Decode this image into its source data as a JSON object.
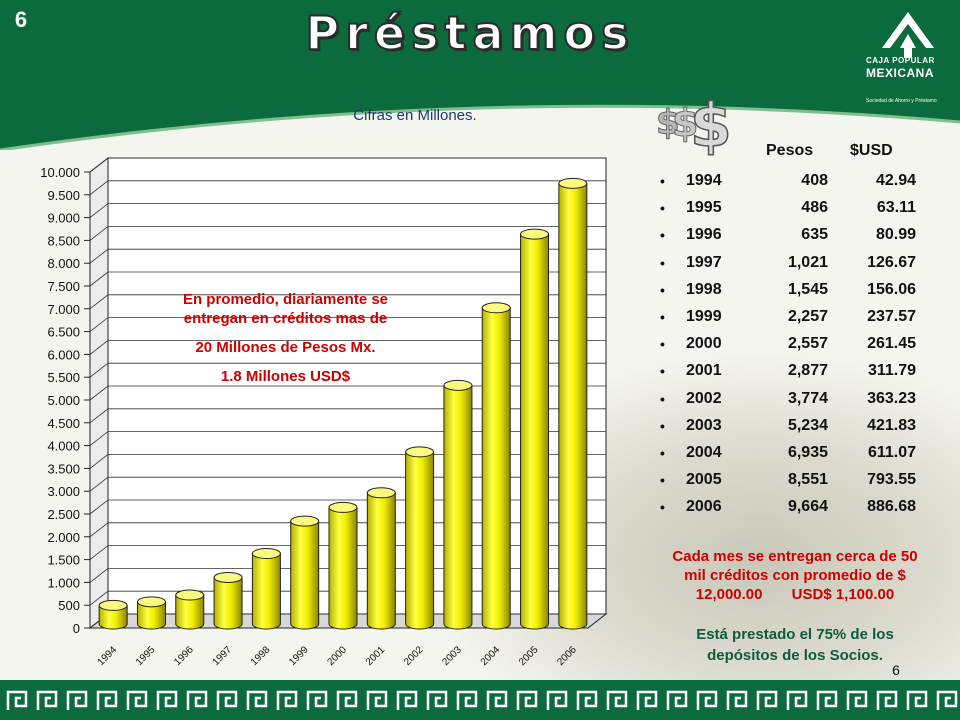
{
  "slide": {
    "number": "6",
    "footer_number": "6"
  },
  "title": "Préstamos",
  "subtitle": "Cifras en Millones.",
  "logo": {
    "line1": "CAJA POPULAR",
    "line2": "MEXICANA",
    "line3": "Sociedad de Ahorro y Préstamo"
  },
  "colors": {
    "header_green": "#0b6b3d",
    "bar_yellow": "#f2ee00",
    "callout_red": "#cc0000",
    "note_green": "#0f5a3c"
  },
  "callout": {
    "line1": "En promedio, diariamente se",
    "line2": "entregan en créditos mas de",
    "line3": "20 Millones de Pesos Mx.",
    "line4": "1.8 Millones USD$"
  },
  "table": {
    "headers": {
      "pesos": "Pesos",
      "usd": "$USD"
    },
    "bullet": "•",
    "rows": [
      {
        "year": "1994",
        "pesos": "408",
        "usd": "42.94"
      },
      {
        "year": "1995",
        "pesos": "486",
        "usd": "63.11"
      },
      {
        "year": "1996",
        "pesos": "635",
        "usd": "80.99"
      },
      {
        "year": "1997",
        "pesos": "1,021",
        "usd": "126.67"
      },
      {
        "year": "1998",
        "pesos": "1,545",
        "usd": "156.06"
      },
      {
        "year": "1999",
        "pesos": "2,257",
        "usd": "237.57"
      },
      {
        "year": "2000",
        "pesos": "2,557",
        "usd": "261.45"
      },
      {
        "year": "2001",
        "pesos": "2,877",
        "usd": "311.79"
      },
      {
        "year": "2002",
        "pesos": "3,774",
        "usd": "363.23"
      },
      {
        "year": "2003",
        "pesos": "5,234",
        "usd": "421.83"
      },
      {
        "year": "2004",
        "pesos": "6,935",
        "usd": "611.07"
      },
      {
        "year": "2005",
        "pesos": "8,551",
        "usd": "793.55"
      },
      {
        "year": "2006",
        "pesos": "9,664",
        "usd": "886.68"
      }
    ]
  },
  "notes": {
    "note1_line1": "Cada mes se entregan cerca de 50",
    "note1_line2": "mil créditos con promedio de  $",
    "note1_line3": "12,000.00       USD$ 1,100.00",
    "note2_line1": "Está prestado el 75% de los",
    "note2_line2": "depósitos de los Socios."
  },
  "chart_data": {
    "type": "bar",
    "title": "",
    "xlabel": "",
    "ylabel": "",
    "categories": [
      "1994",
      "1995",
      "1996",
      "1997",
      "1998",
      "1999",
      "2000",
      "2001",
      "2002",
      "2003",
      "2004",
      "2005",
      "2006"
    ],
    "values": [
      408,
      486,
      635,
      1021,
      1545,
      2257,
      2557,
      2877,
      3774,
      5234,
      6935,
      8551,
      9664
    ],
    "ylim": [
      0,
      10000
    ],
    "yticks": [
      0,
      500,
      1000,
      1500,
      2000,
      2500,
      3000,
      3500,
      4000,
      4500,
      5000,
      5500,
      6000,
      6500,
      7000,
      7500,
      8000,
      8500,
      9000,
      9500,
      10000
    ],
    "ytick_labels": [
      "0",
      "500",
      "1.000",
      "1.500",
      "2.000",
      "2.500",
      "3.000",
      "3.500",
      "4.000",
      "4.500",
      "5.000",
      "5.500",
      "6.000",
      "6.500",
      "7.000",
      "7.500",
      "8.000",
      "8.500",
      "9.000",
      "9.500",
      "10.000"
    ],
    "grid": true,
    "legend": "none"
  }
}
